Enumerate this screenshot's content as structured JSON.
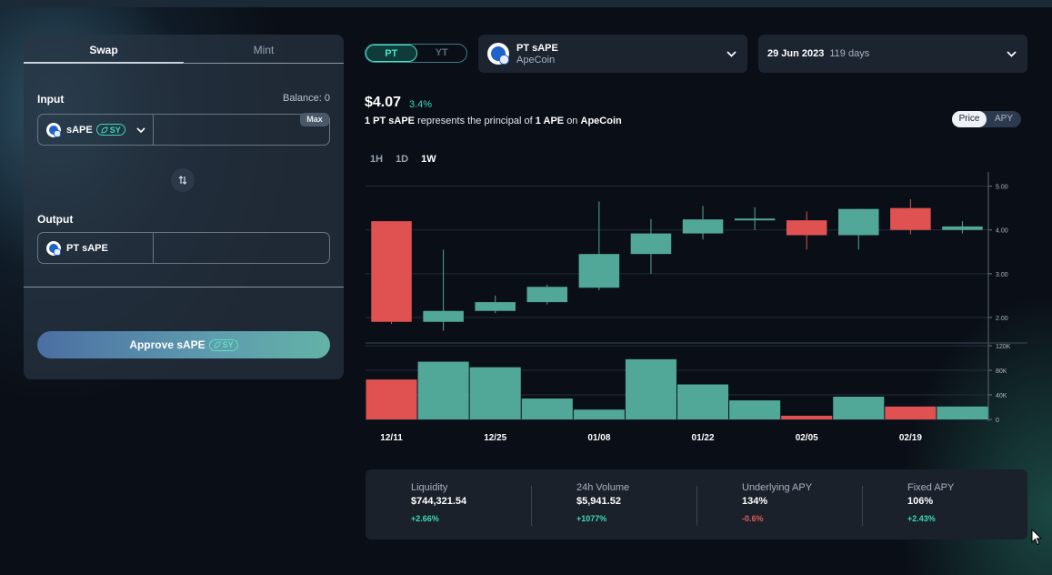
{
  "swap": {
    "tabs": [
      {
        "label": "Swap"
      },
      {
        "label": "Mint"
      }
    ],
    "input_label": "Input",
    "balance": "Balance: 0",
    "input_token": "sAPE",
    "sy_badge": "SY",
    "max_label": "Max",
    "output_label": "Output",
    "output_token": "PT sAPE",
    "approve_label": "Approve sAPE"
  },
  "toggle": {
    "pt": "PT",
    "yt": "YT"
  },
  "market": {
    "name": "PT sAPE",
    "underlying": "ApeCoin"
  },
  "maturity": {
    "date": "29 Jun 2023",
    "days": "119 days"
  },
  "price": {
    "value": "$4.07",
    "change": "3.4%"
  },
  "description": {
    "p1": "1 PT sAPE",
    "p2": "represents the principal of",
    "p3": "1 APE",
    "p4": "on",
    "p5": "ApeCoin"
  },
  "view_toggle": {
    "price": "Price",
    "apy": "APY"
  },
  "timeframes": [
    "1H",
    "1D",
    "1W"
  ],
  "chart_data": {
    "type": "candlestick",
    "x_labels": [
      "12/11",
      "12/25",
      "01/08",
      "01/22",
      "02/05",
      "02/19"
    ],
    "price_ticks": [
      "5.00",
      "4.00",
      "3.00",
      "2.00"
    ],
    "ylim": [
      1.5,
      5.2
    ],
    "volume_ticks": [
      "120K",
      "80K",
      "40K",
      "0"
    ],
    "volume_lim": [
      0,
      120000
    ],
    "candles": [
      {
        "open": 4.2,
        "high": 4.2,
        "low": 1.85,
        "close": 1.9,
        "volume": 65000
      },
      {
        "open": 1.9,
        "high": 3.55,
        "low": 1.7,
        "close": 2.15,
        "volume": 94000
      },
      {
        "open": 2.15,
        "high": 2.5,
        "low": 2.1,
        "close": 2.35,
        "volume": 85000
      },
      {
        "open": 2.35,
        "high": 2.75,
        "low": 2.3,
        "close": 2.7,
        "volume": 34000
      },
      {
        "open": 2.68,
        "high": 4.65,
        "low": 2.62,
        "close": 3.45,
        "volume": 16000
      },
      {
        "open": 3.45,
        "high": 4.25,
        "low": 3.0,
        "close": 3.92,
        "volume": 98000
      },
      {
        "open": 3.92,
        "high": 4.55,
        "low": 3.78,
        "close": 4.24,
        "volume": 57000
      },
      {
        "open": 4.22,
        "high": 4.52,
        "low": 4.0,
        "close": 4.26,
        "volume": 31000
      },
      {
        "open": 4.22,
        "high": 4.42,
        "low": 3.55,
        "close": 3.88,
        "volume": 6000
      },
      {
        "open": 3.88,
        "high": 4.48,
        "low": 3.55,
        "close": 4.48,
        "volume": 37000
      },
      {
        "open": 4.5,
        "high": 4.7,
        "low": 3.9,
        "close": 4.0,
        "volume": 21000
      },
      {
        "open": 4.0,
        "high": 4.2,
        "low": 3.92,
        "close": 4.08,
        "volume": 21000
      }
    ]
  },
  "stats": [
    {
      "label": "Liquidity",
      "value": "$744,321.54",
      "change": "+2.66%",
      "dir": "up"
    },
    {
      "label": "24h Volume",
      "value": "$5,941.52",
      "change": "+1077%",
      "dir": "up"
    },
    {
      "label": "Underlying APY",
      "value": "134%",
      "change": "-0.6%",
      "dir": "down"
    },
    {
      "label": "Fixed APY",
      "value": "106%",
      "change": "+2.43%",
      "dir": "up"
    }
  ],
  "colors": {
    "up": "#52a898",
    "down": "#e05252",
    "accent": "#3fd9bb"
  }
}
